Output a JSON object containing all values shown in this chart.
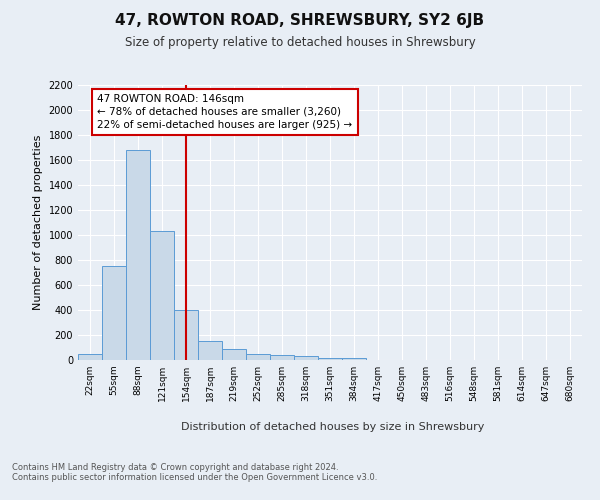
{
  "title": "47, ROWTON ROAD, SHREWSBURY, SY2 6JB",
  "subtitle": "Size of property relative to detached houses in Shrewsbury",
  "xlabel": "Distribution of detached houses by size in Shrewsbury",
  "ylabel": "Number of detached properties",
  "bar_labels": [
    "22sqm",
    "55sqm",
    "88sqm",
    "121sqm",
    "154sqm",
    "187sqm",
    "219sqm",
    "252sqm",
    "285sqm",
    "318sqm",
    "351sqm",
    "384sqm",
    "417sqm",
    "450sqm",
    "483sqm",
    "516sqm",
    "548sqm",
    "581sqm",
    "614sqm",
    "647sqm",
    "680sqm"
  ],
  "bar_values": [
    50,
    750,
    1680,
    1030,
    400,
    150,
    85,
    50,
    40,
    30,
    20,
    20,
    0,
    0,
    0,
    0,
    0,
    0,
    0,
    0,
    0
  ],
  "bar_color": "#c9d9e8",
  "bar_edge_color": "#5b9bd5",
  "ylim": [
    0,
    2200
  ],
  "yticks": [
    0,
    200,
    400,
    600,
    800,
    1000,
    1200,
    1400,
    1600,
    1800,
    2000,
    2200
  ],
  "vline_x": 4,
  "vline_color": "#cc0000",
  "annotation_text": "47 ROWTON ROAD: 146sqm\n← 78% of detached houses are smaller (3,260)\n22% of semi-detached houses are larger (925) →",
  "annotation_box_color": "#ffffff",
  "annotation_box_edge": "#cc0000",
  "footer_text": "Contains HM Land Registry data © Crown copyright and database right 2024.\nContains public sector information licensed under the Open Government Licence v3.0.",
  "bg_color": "#e8eef5",
  "plot_bg_color": "#e8eef5",
  "grid_color": "#ffffff",
  "title_fontsize": 11,
  "subtitle_fontsize": 8.5,
  "ylabel_fontsize": 8,
  "tick_fontsize": 7,
  "xtick_fontsize": 6.5,
  "footer_fontsize": 6
}
